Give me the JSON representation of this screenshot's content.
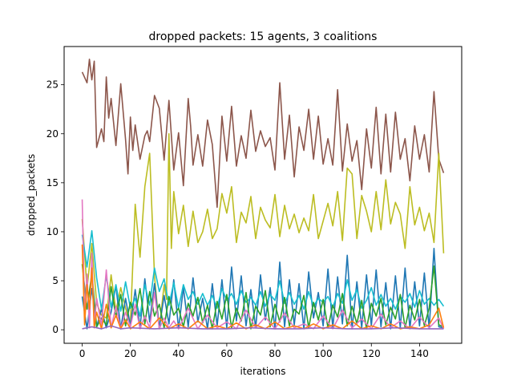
{
  "chart_data": {
    "type": "line",
    "title": "dropped packets: 15 agents, 3 coalitions",
    "xlabel": "iterations",
    "ylabel": "dropped_packets",
    "xlim": [
      -7.5,
      157.5
    ],
    "ylim": [
      -1.38,
      28.9
    ],
    "xticks": [
      0,
      20,
      40,
      60,
      80,
      100,
      120,
      140
    ],
    "yticks": [
      0,
      5,
      10,
      15,
      20,
      25
    ],
    "grid": false,
    "legend": "none",
    "series": [
      {
        "color": "#8c564b",
        "x": [
          0,
          2,
          3,
          4,
          5,
          6,
          8,
          9,
          10,
          11,
          12,
          14,
          16,
          18,
          19,
          20,
          21,
          22,
          24,
          26,
          27,
          28,
          30,
          32,
          34,
          36,
          38,
          40,
          42,
          44,
          45,
          46,
          48,
          50,
          52,
          54,
          56,
          58,
          60,
          62,
          64,
          66,
          68,
          70,
          72,
          74,
          76,
          78,
          80,
          82,
          84,
          86,
          88,
          90,
          92,
          94,
          96,
          98,
          100,
          102,
          104,
          106,
          108,
          110,
          112,
          114,
          116,
          118,
          120,
          122,
          124,
          126,
          128,
          130,
          132,
          134,
          136,
          138,
          140,
          142,
          144,
          146,
          148,
          150
        ],
        "y": [
          26.3,
          25.2,
          27.6,
          25.5,
          27.4,
          18.6,
          20.5,
          19.2,
          25.8,
          21.6,
          23.6,
          18.8,
          25.1,
          19.4,
          15.9,
          21.7,
          18.3,
          20.9,
          17.4,
          19.8,
          20.3,
          19.2,
          23.9,
          22.6,
          17.3,
          23.4,
          16.3,
          20.1,
          14.7,
          23.6,
          20.8,
          16.8,
          19.9,
          16.7,
          21.4,
          18.9,
          12.5,
          21.8,
          17.2,
          22.8,
          16.7,
          19.8,
          17.5,
          22.4,
          18.2,
          20.3,
          18.7,
          19.6,
          16.3,
          25.2,
          17.4,
          21.9,
          15.6,
          20.7,
          18.3,
          22.5,
          17.4,
          21.8,
          16.9,
          19.5,
          16.8,
          24.5,
          16.2,
          21.0,
          17.2,
          19.3,
          14.3,
          20.5,
          16.5,
          22.7,
          15.9,
          22.0,
          16.1,
          22.2,
          17.4,
          19.5,
          15.2,
          20.8,
          17.4,
          19.9,
          16.1,
          24.3,
          17.4,
          16.0
        ]
      },
      {
        "color": "#bcbd22",
        "x": [
          0,
          2,
          4,
          6,
          8,
          10,
          12,
          14,
          16,
          18,
          20,
          22,
          24,
          26,
          28,
          30,
          32,
          34,
          35,
          36,
          37,
          38,
          40,
          42,
          44,
          46,
          48,
          50,
          52,
          54,
          56,
          58,
          60,
          62,
          64,
          66,
          68,
          70,
          72,
          74,
          76,
          78,
          80,
          82,
          84,
          86,
          88,
          90,
          92,
          94,
          96,
          98,
          100,
          102,
          104,
          106,
          108,
          110,
          112,
          114,
          116,
          118,
          120,
          122,
          124,
          126,
          128,
          130,
          132,
          134,
          136,
          138,
          140,
          142,
          144,
          146,
          148,
          150
        ],
        "y": [
          11.3,
          4.2,
          8.8,
          2.7,
          1.5,
          1.2,
          5.6,
          1.9,
          4.3,
          2.2,
          0.6,
          12.8,
          7.4,
          14.6,
          18.0,
          5.5,
          0.1,
          4.6,
          3.1,
          20.0,
          8.3,
          14.1,
          9.8,
          12.7,
          8.5,
          12.1,
          8.9,
          10.0,
          12.3,
          9.3,
          10.3,
          13.9,
          11.9,
          14.6,
          8.9,
          12.0,
          10.9,
          13.6,
          9.3,
          12.5,
          11.2,
          10.4,
          13.8,
          9.5,
          12.7,
          10.3,
          11.8,
          9.9,
          11.4,
          10.1,
          13.8,
          9.3,
          11.1,
          12.9,
          10.6,
          14.1,
          9.1,
          16.5,
          15.9,
          9.3,
          13.7,
          12.1,
          10.0,
          14.1,
          10.2,
          15.3,
          10.8,
          13.0,
          11.8,
          8.3,
          14.6,
          10.7,
          12.5,
          10.1,
          11.9,
          8.9,
          18.0,
          7.8
        ]
      },
      {
        "color": "#1f77b4",
        "x": [
          0,
          2,
          4,
          6,
          8,
          10,
          12,
          14,
          16,
          18,
          20,
          22,
          24,
          26,
          28,
          30,
          32,
          34,
          36,
          38,
          40,
          42,
          44,
          46,
          48,
          50,
          52,
          54,
          56,
          58,
          60,
          62,
          64,
          66,
          68,
          70,
          72,
          74,
          76,
          78,
          80,
          82,
          84,
          86,
          88,
          90,
          92,
          94,
          96,
          98,
          100,
          102,
          104,
          106,
          108,
          110,
          112,
          114,
          116,
          118,
          120,
          122,
          124,
          126,
          128,
          130,
          132,
          134,
          136,
          138,
          140,
          142,
          144,
          146,
          148,
          150
        ],
        "y": [
          3.4,
          0.1,
          4.2,
          0.3,
          2.1,
          0.2,
          1.8,
          4.5,
          0.1,
          3.2,
          0.4,
          4.1,
          0.2,
          5.2,
          0.8,
          4.7,
          0.2,
          3.5,
          0.6,
          5.1,
          0.1,
          4.3,
          0.3,
          5.3,
          0.8,
          3.2,
          0.1,
          4.7,
          0.4,
          5.1,
          0.2,
          6.4,
          0.9,
          5.5,
          0.4,
          4.1,
          0.2,
          5.6,
          1.0,
          4.3,
          0.1,
          6.9,
          0.3,
          5.1,
          0.5,
          4.7,
          0.1,
          5.9,
          1.2,
          3.8,
          0.4,
          6.2,
          0.2,
          5.4,
          0.6,
          7.6,
          0.1,
          4.9,
          0.2,
          5.6,
          0.4,
          6.1,
          0.3,
          4.8,
          0.1,
          5.5,
          0.2,
          6.3,
          0.1,
          4.9,
          0.4,
          5.8,
          0.1,
          8.3,
          0.3,
          0.2
        ]
      },
      {
        "color": "#17becf",
        "x": [
          0,
          2,
          4,
          6,
          8,
          10,
          12,
          14,
          16,
          18,
          20,
          22,
          24,
          26,
          28,
          30,
          32,
          34,
          36,
          38,
          40,
          42,
          44,
          46,
          48,
          50,
          52,
          54,
          56,
          58,
          60,
          62,
          64,
          66,
          68,
          70,
          72,
          74,
          76,
          78,
          80,
          82,
          84,
          86,
          88,
          90,
          92,
          94,
          96,
          98,
          100,
          102,
          104,
          106,
          108,
          110,
          112,
          114,
          116,
          118,
          120,
          122,
          124,
          126,
          128,
          130,
          132,
          134,
          136,
          138,
          140,
          142,
          144,
          146,
          148,
          150
        ],
        "y": [
          9.7,
          6.4,
          10.1,
          5.3,
          2.1,
          5.5,
          2.3,
          4.6,
          1.9,
          4.9,
          2.2,
          3.2,
          1.4,
          4.6,
          2.5,
          6.3,
          3.9,
          5.2,
          2.5,
          4.8,
          2.2,
          4.6,
          3.1,
          3.9,
          2.6,
          3.7,
          2.5,
          3.5,
          2.2,
          4.2,
          3.0,
          3.7,
          2.6,
          4.0,
          2.8,
          3.3,
          2.5,
          3.9,
          2.4,
          3.6,
          3.0,
          5.0,
          2.7,
          3.8,
          2.6,
          3.5,
          2.1,
          3.9,
          2.4,
          3.2,
          2.8,
          3.4,
          2.3,
          3.7,
          2.7,
          5.1,
          3.0,
          4.1,
          2.2,
          3.0,
          4.3,
          2.5,
          3.6,
          2.4,
          3.2,
          2.1,
          3.4,
          2.8,
          3.7,
          2.3,
          4.0,
          2.6,
          3.2,
          2.5,
          3.1,
          2.4
        ]
      },
      {
        "color": "#2ca02c",
        "x": [
          0,
          2,
          4,
          6,
          8,
          10,
          12,
          14,
          16,
          18,
          20,
          22,
          24,
          26,
          28,
          30,
          32,
          34,
          36,
          38,
          40,
          42,
          44,
          46,
          48,
          50,
          52,
          54,
          56,
          58,
          60,
          62,
          64,
          66,
          68,
          70,
          72,
          74,
          76,
          78,
          80,
          82,
          84,
          86,
          88,
          90,
          92,
          94,
          96,
          98,
          100,
          102,
          104,
          106,
          108,
          110,
          112,
          114,
          116,
          118,
          120,
          122,
          124,
          126,
          128,
          130,
          132,
          134,
          136,
          138,
          140,
          142,
          144,
          146,
          148,
          150
        ],
        "y": [
          6.7,
          2.1,
          5.8,
          0.3,
          1.2,
          0.5,
          4.4,
          1.3,
          3.6,
          0.4,
          2.8,
          1.5,
          4.2,
          0.6,
          3.9,
          1.4,
          2.6,
          0.2,
          3.4,
          1.5,
          2.2,
          0.3,
          2.7,
          1.4,
          3.3,
          0.7,
          2.5,
          0.1,
          2.9,
          1.1,
          3.6,
          0.2,
          2.2,
          0.9,
          3.8,
          0.1,
          2.4,
          1.5,
          4.0,
          0.3,
          2.6,
          0.8,
          3.3,
          0.4,
          2.1,
          1.6,
          3.5,
          0.2,
          2.8,
          1.0,
          3.1,
          0.2,
          2.5,
          1.3,
          3.7,
          0.4,
          2.4,
          0.6,
          3.0,
          0.1,
          2.7,
          1.4,
          3.2,
          0.5,
          2.3,
          1.1,
          3.6,
          0.2,
          2.5,
          1.0,
          3.1,
          0.4,
          2.2,
          6.5,
          0.5,
          0.3
        ]
      },
      {
        "color": "#e377c2",
        "x": [
          0,
          1,
          2,
          3,
          4,
          5,
          6,
          8,
          10,
          12,
          14,
          16,
          18,
          20,
          22,
          24,
          26,
          28,
          30,
          32,
          34,
          36,
          38,
          40,
          44,
          48,
          52,
          56,
          60,
          64,
          68,
          72,
          76,
          80,
          84,
          88,
          92,
          96,
          100,
          104,
          108,
          112,
          116,
          120,
          124,
          128,
          132,
          136,
          140,
          144,
          148,
          150
        ],
        "y": [
          13.3,
          1.5,
          5.7,
          0.2,
          7.8,
          0.5,
          3.2,
          0.4,
          6.1,
          0.2,
          2.4,
          0.1,
          1.8,
          0.3,
          2.6,
          0.1,
          1.4,
          0.2,
          3.8,
          0.1,
          1.2,
          0.2,
          0.9,
          0.1,
          2.2,
          0.1,
          1.5,
          0.2,
          0.8,
          0.1,
          2.0,
          0.2,
          1.3,
          0.1,
          1.7,
          0.2,
          0.6,
          0.1,
          1.4,
          0.1,
          2.0,
          0.2,
          1.1,
          0.1,
          1.6,
          0.2,
          0.9,
          0.1,
          1.3,
          0.2,
          1.2,
          0.1
        ]
      },
      {
        "color": "#ff7f0e",
        "x": [
          0,
          1,
          2,
          3,
          4,
          5,
          6,
          8,
          10,
          12,
          14,
          16,
          18,
          20,
          24,
          28,
          32,
          36,
          40,
          44,
          48,
          52,
          56,
          60,
          64,
          68,
          72,
          76,
          80,
          84,
          88,
          92,
          96,
          100,
          104,
          108,
          112,
          116,
          120,
          124,
          128,
          132,
          136,
          140,
          144,
          148,
          150
        ],
        "y": [
          8.7,
          0.5,
          4.6,
          2.1,
          6.3,
          0.2,
          1.8,
          0.1,
          2.6,
          0.2,
          1.5,
          0.1,
          1.0,
          0.1,
          0.8,
          0.1,
          1.2,
          0.1,
          0.6,
          0.1,
          0.9,
          0.1,
          0.4,
          0.1,
          0.7,
          0.1,
          0.5,
          0.1,
          0.8,
          0.1,
          0.4,
          0.1,
          0.6,
          0.1,
          0.5,
          0.1,
          0.9,
          0.1,
          0.4,
          0.1,
          0.6,
          0.1,
          0.3,
          0.1,
          0.5,
          2.2,
          0.2
        ]
      },
      {
        "color": "#9467bd",
        "x": [
          0,
          4,
          8,
          12,
          16,
          20,
          30,
          40,
          50,
          60,
          70,
          80,
          90,
          100,
          110,
          120,
          130,
          140,
          150
        ],
        "y": [
          0.1,
          0.3,
          0.1,
          0.4,
          0.1,
          0.2,
          0.1,
          0.2,
          0.1,
          0.1,
          0.2,
          0.1,
          0.1,
          0.2,
          0.1,
          0.1,
          0.2,
          0.1,
          0.1
        ]
      }
    ]
  }
}
